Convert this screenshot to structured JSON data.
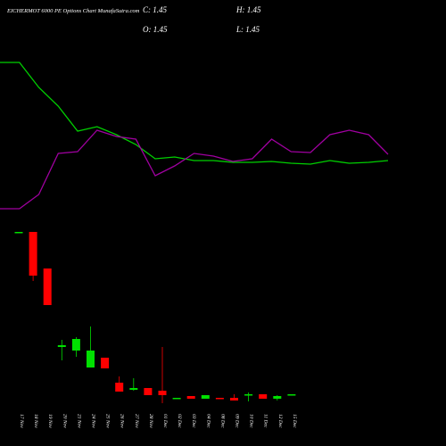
{
  "chart_data": [
    {
      "type": "candlestick",
      "title": "EICHERMOT 6000 PE Options Chart MunafaSutra.com",
      "ohlc_labels": {
        "close": "C: 1.45",
        "open": "O: 1.45",
        "high": "H: 1.45",
        "low": "L: 1.45"
      },
      "categories": [
        "17 Nov",
        "18 Nov",
        "19 Nov",
        "20 Nov",
        "21 Nov",
        "24 Nov",
        "25 Nov",
        "26 Nov",
        "27 Nov",
        "28 Nov",
        "01 Dec",
        "02 Dec",
        "03 Dec",
        "04 Dec",
        "08 Dec",
        "09 Dec",
        "10 Dec",
        "11 Dec",
        "12 Dec",
        "15 Dec"
      ],
      "open": [
        19.65,
        19.65,
        15.55,
        6.75,
        6.35,
        4.45,
        5.55,
        2.75,
        1.95,
        2.15,
        1.85,
        1.05,
        1.25,
        0.95,
        1.05,
        1.05,
        1.35,
        1.45,
        0.95,
        1.45
      ],
      "high": [
        19.65,
        19.65,
        15.55,
        7.55,
        7.85,
        9.05,
        5.55,
        3.45,
        3.25,
        2.15,
        6.75,
        1.05,
        1.25,
        1.35,
        1.05,
        1.45,
        1.65,
        1.45,
        1.35,
        1.45
      ],
      "low": [
        19.65,
        14.15,
        11.45,
        5.25,
        5.65,
        4.45,
        4.35,
        1.75,
        1.85,
        1.35,
        0.45,
        1.05,
        0.95,
        0.95,
        0.95,
        0.75,
        0.65,
        0.95,
        0.75,
        1.45
      ],
      "close": [
        19.65,
        14.75,
        11.45,
        6.95,
        7.65,
        6.35,
        4.35,
        1.75,
        2.15,
        1.35,
        1.35,
        1.05,
        0.95,
        1.35,
        0.95,
        0.75,
        1.45,
        0.95,
        1.25,
        1.45
      ],
      "up_color": "#00e000",
      "down_color": "#ff0000",
      "ylim": [
        0,
        20
      ]
    },
    {
      "type": "line",
      "ylim": [
        0,
        100
      ],
      "series": [
        {
          "color": "#00d000",
          "values": [
            90,
            90,
            76,
            65.5,
            51.5,
            54,
            49.5,
            44,
            36,
            37,
            35,
            35,
            34,
            34,
            34.5,
            33.5,
            33,
            35,
            33.5,
            34,
            35
          ]
        },
        {
          "color": "#a000a0",
          "values": [
            8,
            8,
            16,
            39,
            40,
            52,
            48.5,
            47,
            26.5,
            32,
            39,
            37.5,
            34.5,
            36,
            47,
            40,
            39.5,
            49.5,
            52,
            49.5,
            38.5
          ]
        }
      ]
    }
  ]
}
